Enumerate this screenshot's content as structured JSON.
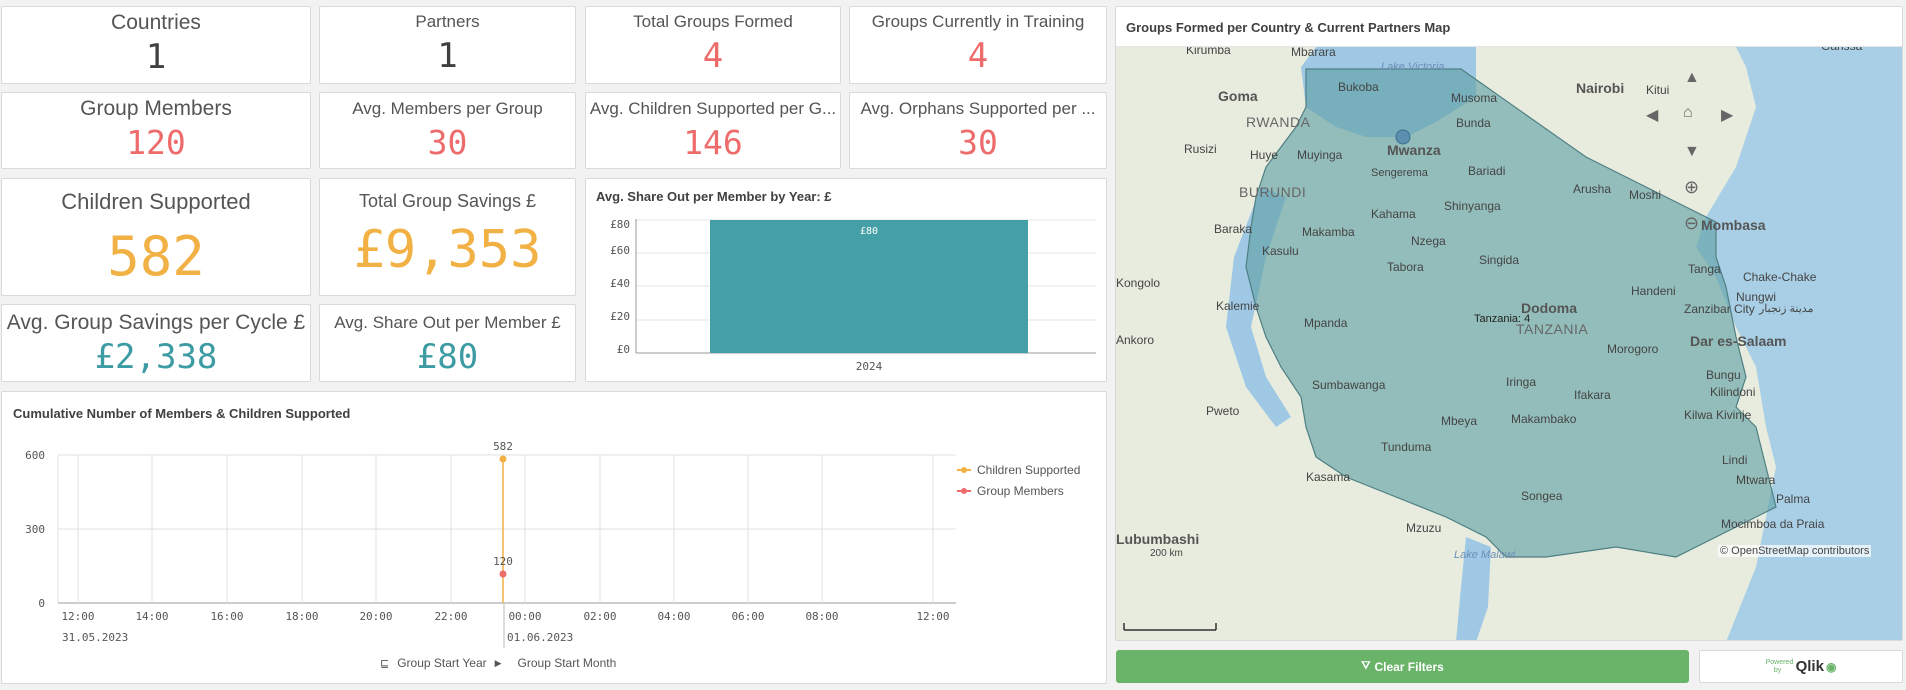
{
  "kpis": {
    "countries": {
      "label": "Countries",
      "value": "1"
    },
    "partners": {
      "label": "Partners",
      "value": "1"
    },
    "groups_formed": {
      "label": "Total Groups Formed",
      "value": "4"
    },
    "groups_training": {
      "label": "Groups Currently in Training",
      "value": "4"
    },
    "group_members": {
      "label": "Group Members",
      "value": "120"
    },
    "avg_members": {
      "label": "Avg. Members per Group",
      "value": "30"
    },
    "avg_children": {
      "label": "Avg. Children Supported per G...",
      "value": "146"
    },
    "avg_orphans": {
      "label": "Avg. Orphans Supported per ...",
      "value": "30"
    },
    "children_supported": {
      "label": "Children Supported",
      "value": "582"
    },
    "total_savings": {
      "label": "Total Group Savings £",
      "value": "£9,353"
    },
    "avg_savings": {
      "label": "Avg. Group Savings per Cycle £",
      "value": "£2,338"
    },
    "avg_shareout": {
      "label": "Avg. Share Out per Member £",
      "value": "£80"
    }
  },
  "colors": {
    "red": "#ee6b6b",
    "orange": "#f2b145",
    "teal": "#3d9ba3",
    "green": "#6ab46a"
  },
  "share_chart": {
    "title": "Avg. Share Out per Member by Year: £",
    "yticks": [
      "£80",
      "£60",
      "£40",
      "£20",
      "£0"
    ],
    "bar_label": "£80",
    "category": "2024"
  },
  "cumulative_chart": {
    "title": "Cumulative Number of Members & Children Supported",
    "yticks": [
      "600",
      "300",
      "0"
    ],
    "xticks": [
      "12:00",
      "14:00",
      "16:00",
      "18:00",
      "20:00",
      "22:00",
      "00:00",
      "02:00",
      "04:00",
      "06:00",
      "08:00",
      "12:00"
    ],
    "date_left": "31.05.2023",
    "date_right": "01.06.2023",
    "legend": [
      "Children Supported",
      "Group Members"
    ],
    "point_children_label": "582",
    "point_members_label": "120",
    "dimension_1": "Group Start Year",
    "dimension_2": "Group Start Month"
  },
  "chart_data": [
    {
      "type": "bar",
      "title": "Avg. Share Out per Member by Year: £",
      "categories": [
        "2024"
      ],
      "values": [
        80
      ],
      "ylim": [
        0,
        80
      ]
    },
    {
      "type": "line",
      "title": "Cumulative Number of Members & Children Supported",
      "x": [
        "01.06.2023 00:00"
      ],
      "series": [
        {
          "name": "Children Supported",
          "values": [
            582
          ]
        },
        {
          "name": "Group Members",
          "values": [
            120
          ]
        }
      ],
      "ylim": [
        0,
        600
      ]
    }
  ],
  "map": {
    "title": "Groups Formed per Country & Current Partners Map",
    "scale": "200 km",
    "attribution": "© OpenStreetMap contributors",
    "point_label": "Tanzania: 4",
    "labels": {
      "kirumba": "Kirumba",
      "mbarara": "Mbarara",
      "lake_victoria": "Lake Victoria",
      "nairobi": "Nairobi",
      "kitui": "Kitui",
      "garissa": "Garissa",
      "goma": "Goma",
      "bukoba": "Bukoba",
      "musoma": "Musoma",
      "rwanda": "RWANDA",
      "bunda": "Bunda",
      "rusizi": "Rusizi",
      "huye": "Huye",
      "muyinga": "Muyinga",
      "mwanza": "Mwanza",
      "sengerema": "Sengerema",
      "bariadi": "Bariadi",
      "arusha": "Arusha",
      "moshi": "Moshi",
      "burundi": "BURUNDI",
      "shinyanga": "Shinyanga",
      "kahama": "Kahama",
      "mombasa": "Mombasa",
      "baraka": "Baraka",
      "makamba": "Makamba",
      "nzega": "Nzega",
      "kasulu": "Kasulu",
      "singida": "Singida",
      "tanga": "Tanga",
      "tabora": "Tabora",
      "chake": "Chake-Chake",
      "kongolo": "Kongolo",
      "handeni": "Handeni",
      "nungwi": "Nungwi",
      "kalemie": "Kalemie",
      "dodoma": "Dodoma",
      "zanzibar": "Zanzibar City",
      "zanzibar_ar": "مدينة زنجبار",
      "mpanda": "Mpanda",
      "tanzania": "TANZANIA",
      "dar": "Dar es-Salaam",
      "ankoro": "Ankoro",
      "morogoro": "Morogoro",
      "bungu": "Bungu",
      "sumbawanga": "Sumbawanga",
      "iringa": "Iringa",
      "kilindoni": "Kilindoni",
      "ifakara": "Ifakara",
      "pweto": "Pweto",
      "mbeya": "Mbeya",
      "makambako": "Makambako",
      "kilwa": "Kilwa Kivinje",
      "tunduma": "Tunduma",
      "lindi": "Lindi",
      "kasama": "Kasama",
      "mtwara": "Mtwara",
      "songea": "Songea",
      "palma": "Palma",
      "lubumbashi": "Lubumbashi",
      "mzuzu": "Mzuzu",
      "mocimboa": "Mocimboa da Praia",
      "lake_malawi": "Lake Malawi"
    }
  },
  "buttons": {
    "clear_filters": "Clear Filters",
    "powered_by": "Powered by",
    "qlik": "Qlik"
  }
}
